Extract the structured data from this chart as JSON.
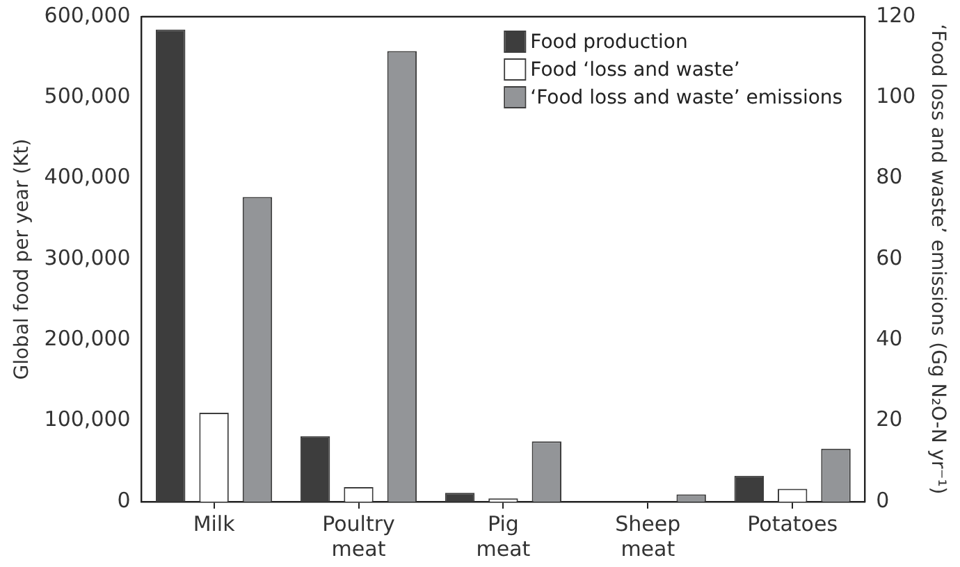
{
  "chart_data": {
    "type": "bar",
    "categories": [
      "Milk",
      "Poultry meat",
      "Pig meat",
      "Sheep meat",
      "Potatoes"
    ],
    "series": [
      {
        "name": "Food production",
        "color": "#3d3d3d",
        "values": [
          584000,
          81000,
          11000,
          0,
          32000
        ]
      },
      {
        "name": "Food ‘loss and waste’",
        "color": "#ffffff",
        "values": [
          110000,
          18000,
          4000,
          0,
          16000
        ]
      },
      {
        "name": "‘Food loss and waste’ emissions",
        "color": "#939598",
        "axis": "y2",
        "values": [
          75.4,
          111.5,
          14.9,
          1.8,
          13.1
        ]
      }
    ],
    "ylabel": "Global food per year (Kt)",
    "y2label": "‘Food loss and waste’ emissions (Gg N₂O-N yr⁻¹)",
    "ylim": [
      0,
      600000
    ],
    "yticks": [
      0,
      {
        "value": 100000,
        "label": "100,000"
      },
      {
        "value": 200000,
        "label": "200,000"
      },
      {
        "value": 300000,
        "label": "300,000"
      },
      {
        "value": 400000,
        "label": "400,000"
      },
      {
        "value": 500000,
        "label": "500,000"
      },
      {
        "value": 600000,
        "label": "600,000"
      }
    ],
    "y2lim": [
      0,
      120
    ],
    "y2ticks": [
      0,
      20,
      40,
      60,
      80,
      100,
      120
    ],
    "legend": "top right",
    "grid": false
  }
}
